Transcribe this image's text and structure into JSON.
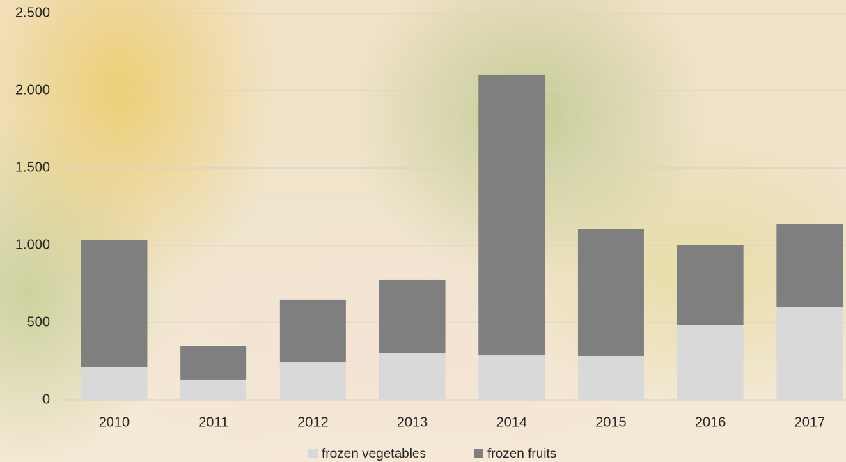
{
  "chart_data": {
    "type": "stacked_bar",
    "categories": [
      "2010",
      "2011",
      "2012",
      "2013",
      "2014",
      "2015",
      "2016",
      "2017"
    ],
    "series": [
      {
        "name": "frozen vegetables",
        "color": "#d9d9d9",
        "values": [
          216,
          131,
          243,
          306,
          288,
          284,
          486,
          599
        ]
      },
      {
        "name": "frozen fruits",
        "color": "#7f7f7f",
        "values": [
          820,
          216,
          406,
          469,
          1816,
          820,
          514,
          536
        ]
      }
    ],
    "ylim": [
      0,
      2500
    ],
    "yticks": [
      0,
      500,
      {
        "value": 1000,
        "label": "1.000"
      },
      {
        "value": 1500,
        "label": "1.500"
      },
      {
        "value": 2000,
        "label": "2.000"
      },
      {
        "value": 2500,
        "label": "2.500"
      }
    ],
    "grid": true,
    "legend": "bottom"
  }
}
